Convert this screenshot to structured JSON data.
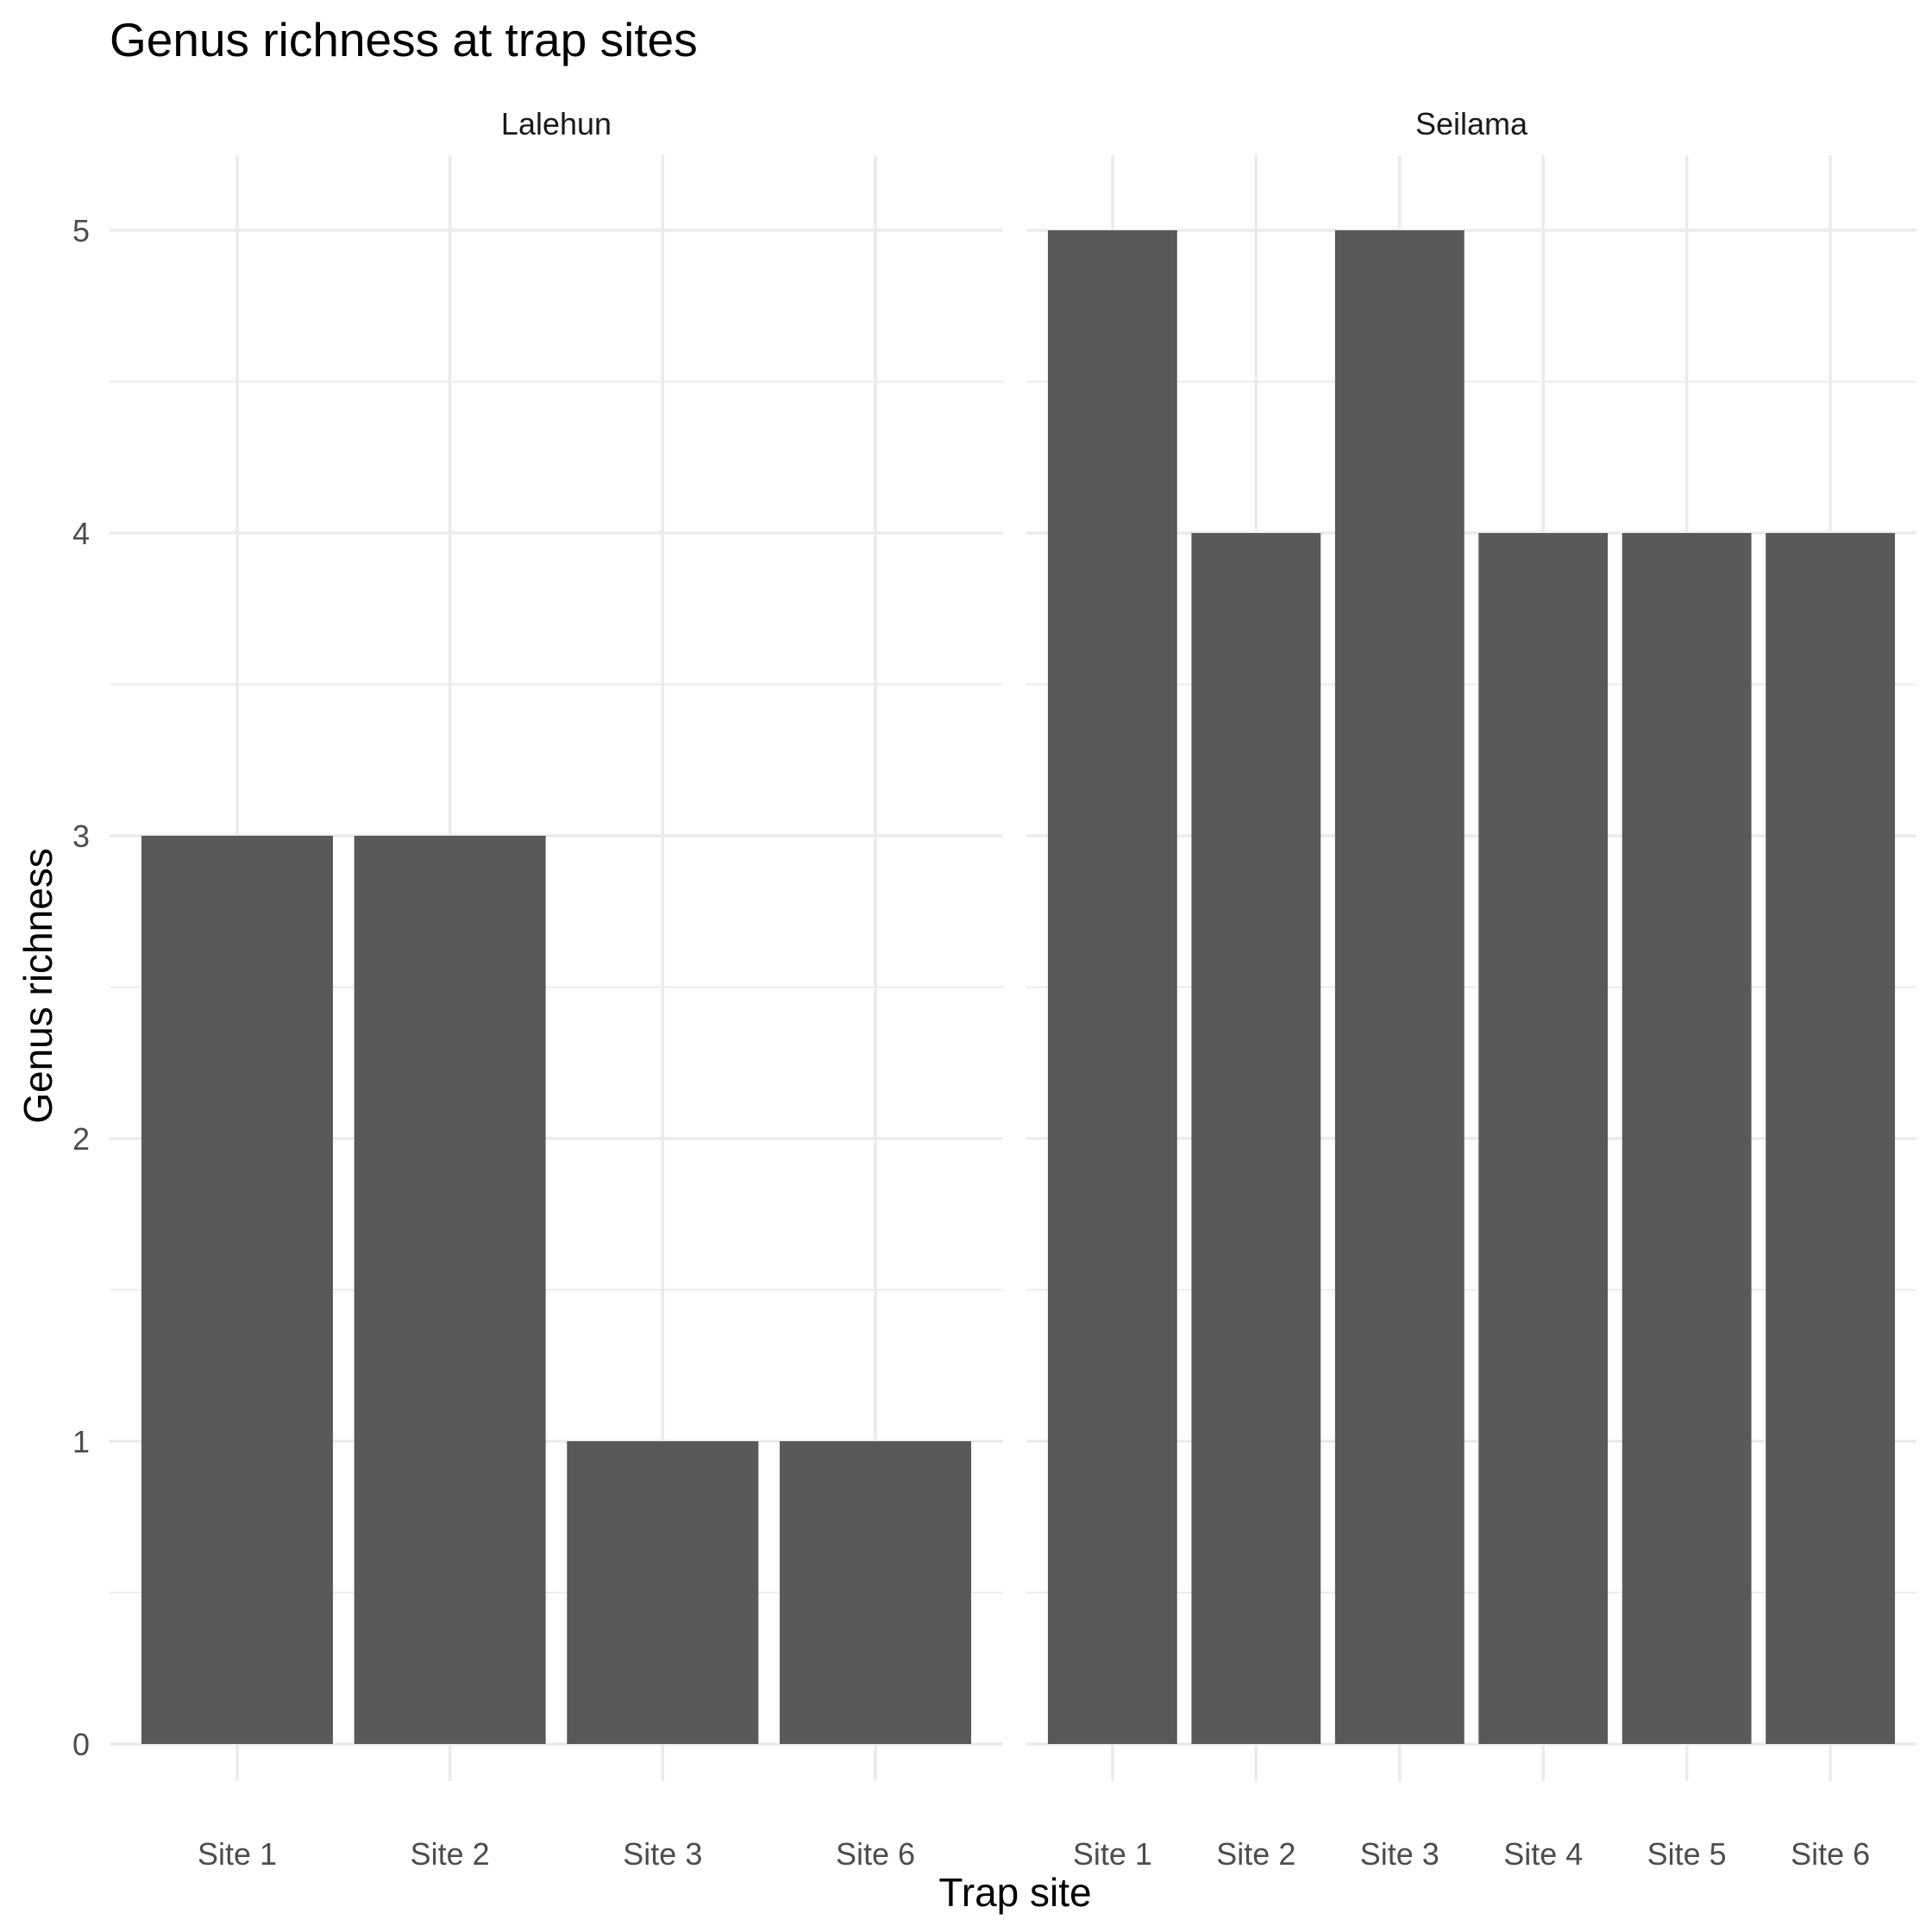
{
  "chart_data": {
    "type": "bar",
    "title": "Genus richness at trap sites",
    "xlabel": "Trap site",
    "ylabel": "Genus richness",
    "ylim": [
      0,
      5
    ],
    "yticks": [
      "0",
      "1",
      "2",
      "3",
      "4",
      "5"
    ],
    "grid": true,
    "bar_color": "#595959",
    "grid_color": "#ebebeb",
    "facets": [
      {
        "name": "Lalehun",
        "categories": [
          "Site 1",
          "Site 2",
          "Site 3",
          "Site 6"
        ],
        "values": [
          3,
          3,
          1,
          1
        ]
      },
      {
        "name": "Seilama",
        "categories": [
          "Site 1",
          "Site 2",
          "Site 3",
          "Site 4",
          "Site 5",
          "Site 6"
        ],
        "values": [
          5,
          4,
          5,
          4,
          4,
          4
        ]
      }
    ]
  }
}
